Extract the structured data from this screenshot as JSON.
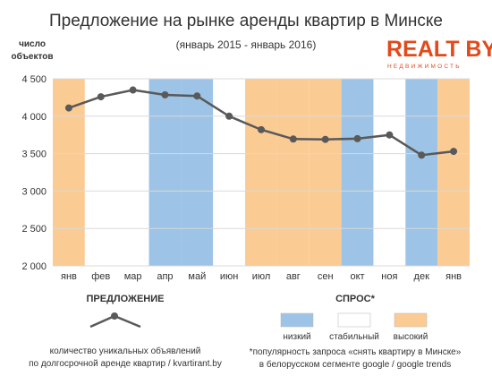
{
  "title": "Предложение на рынке аренды квартир в Минске",
  "subtitle": "(январь 2015 - январь 2016)",
  "logo": {
    "main": "REALT BY",
    "sub": "НЕДВИЖИМОСТЬ",
    "color": "#e24a1b"
  },
  "colors": {
    "low": "#9dc3e6",
    "stable": "#ffffff",
    "high": "#fbcb94",
    "line": "#595959",
    "grid": "#d9d9d9"
  },
  "chart_data": {
    "type": "line",
    "ylabel": [
      "число",
      "объектов"
    ],
    "ylim": [
      2000,
      4500
    ],
    "yticks": [
      2000,
      2500,
      3000,
      3500,
      4000,
      4500
    ],
    "ytick_labels": [
      "2 000",
      "2 500",
      "3 000",
      "3 500",
      "4 000",
      "4 500"
    ],
    "categories": [
      "янв",
      "фев",
      "мар",
      "апр",
      "май",
      "июн",
      "июл",
      "авг",
      "сен",
      "окт",
      "ноя",
      "дек",
      "янв"
    ],
    "series": [
      {
        "values": [
          4110,
          4260,
          4350,
          4285,
          4270,
          4000,
          3820,
          3695,
          3690,
          3700,
          3750,
          3480,
          3530
        ]
      }
    ],
    "demand": [
      "high",
      "stable",
      "stable",
      "low",
      "low",
      "stable",
      "high",
      "high",
      "high",
      "low",
      "stable",
      "low",
      "high"
    ],
    "grid": true
  },
  "legend": {
    "supply_title": "ПРЕДЛОЖЕНИЕ",
    "supply_note_1": "количество уникальных объявлений",
    "supply_note_2": "по долгосрочной аренде квартир / kvartirant.by",
    "demand_title": "СПРОС*",
    "items": [
      {
        "key": "low",
        "label": "низкий"
      },
      {
        "key": "stable",
        "label": "стабильный"
      },
      {
        "key": "high",
        "label": "высокий"
      }
    ],
    "demand_note_1": "*популярность запроса «снять квартиру в Минске»",
    "demand_note_2": "в белорусском сегменте google / google trends"
  }
}
